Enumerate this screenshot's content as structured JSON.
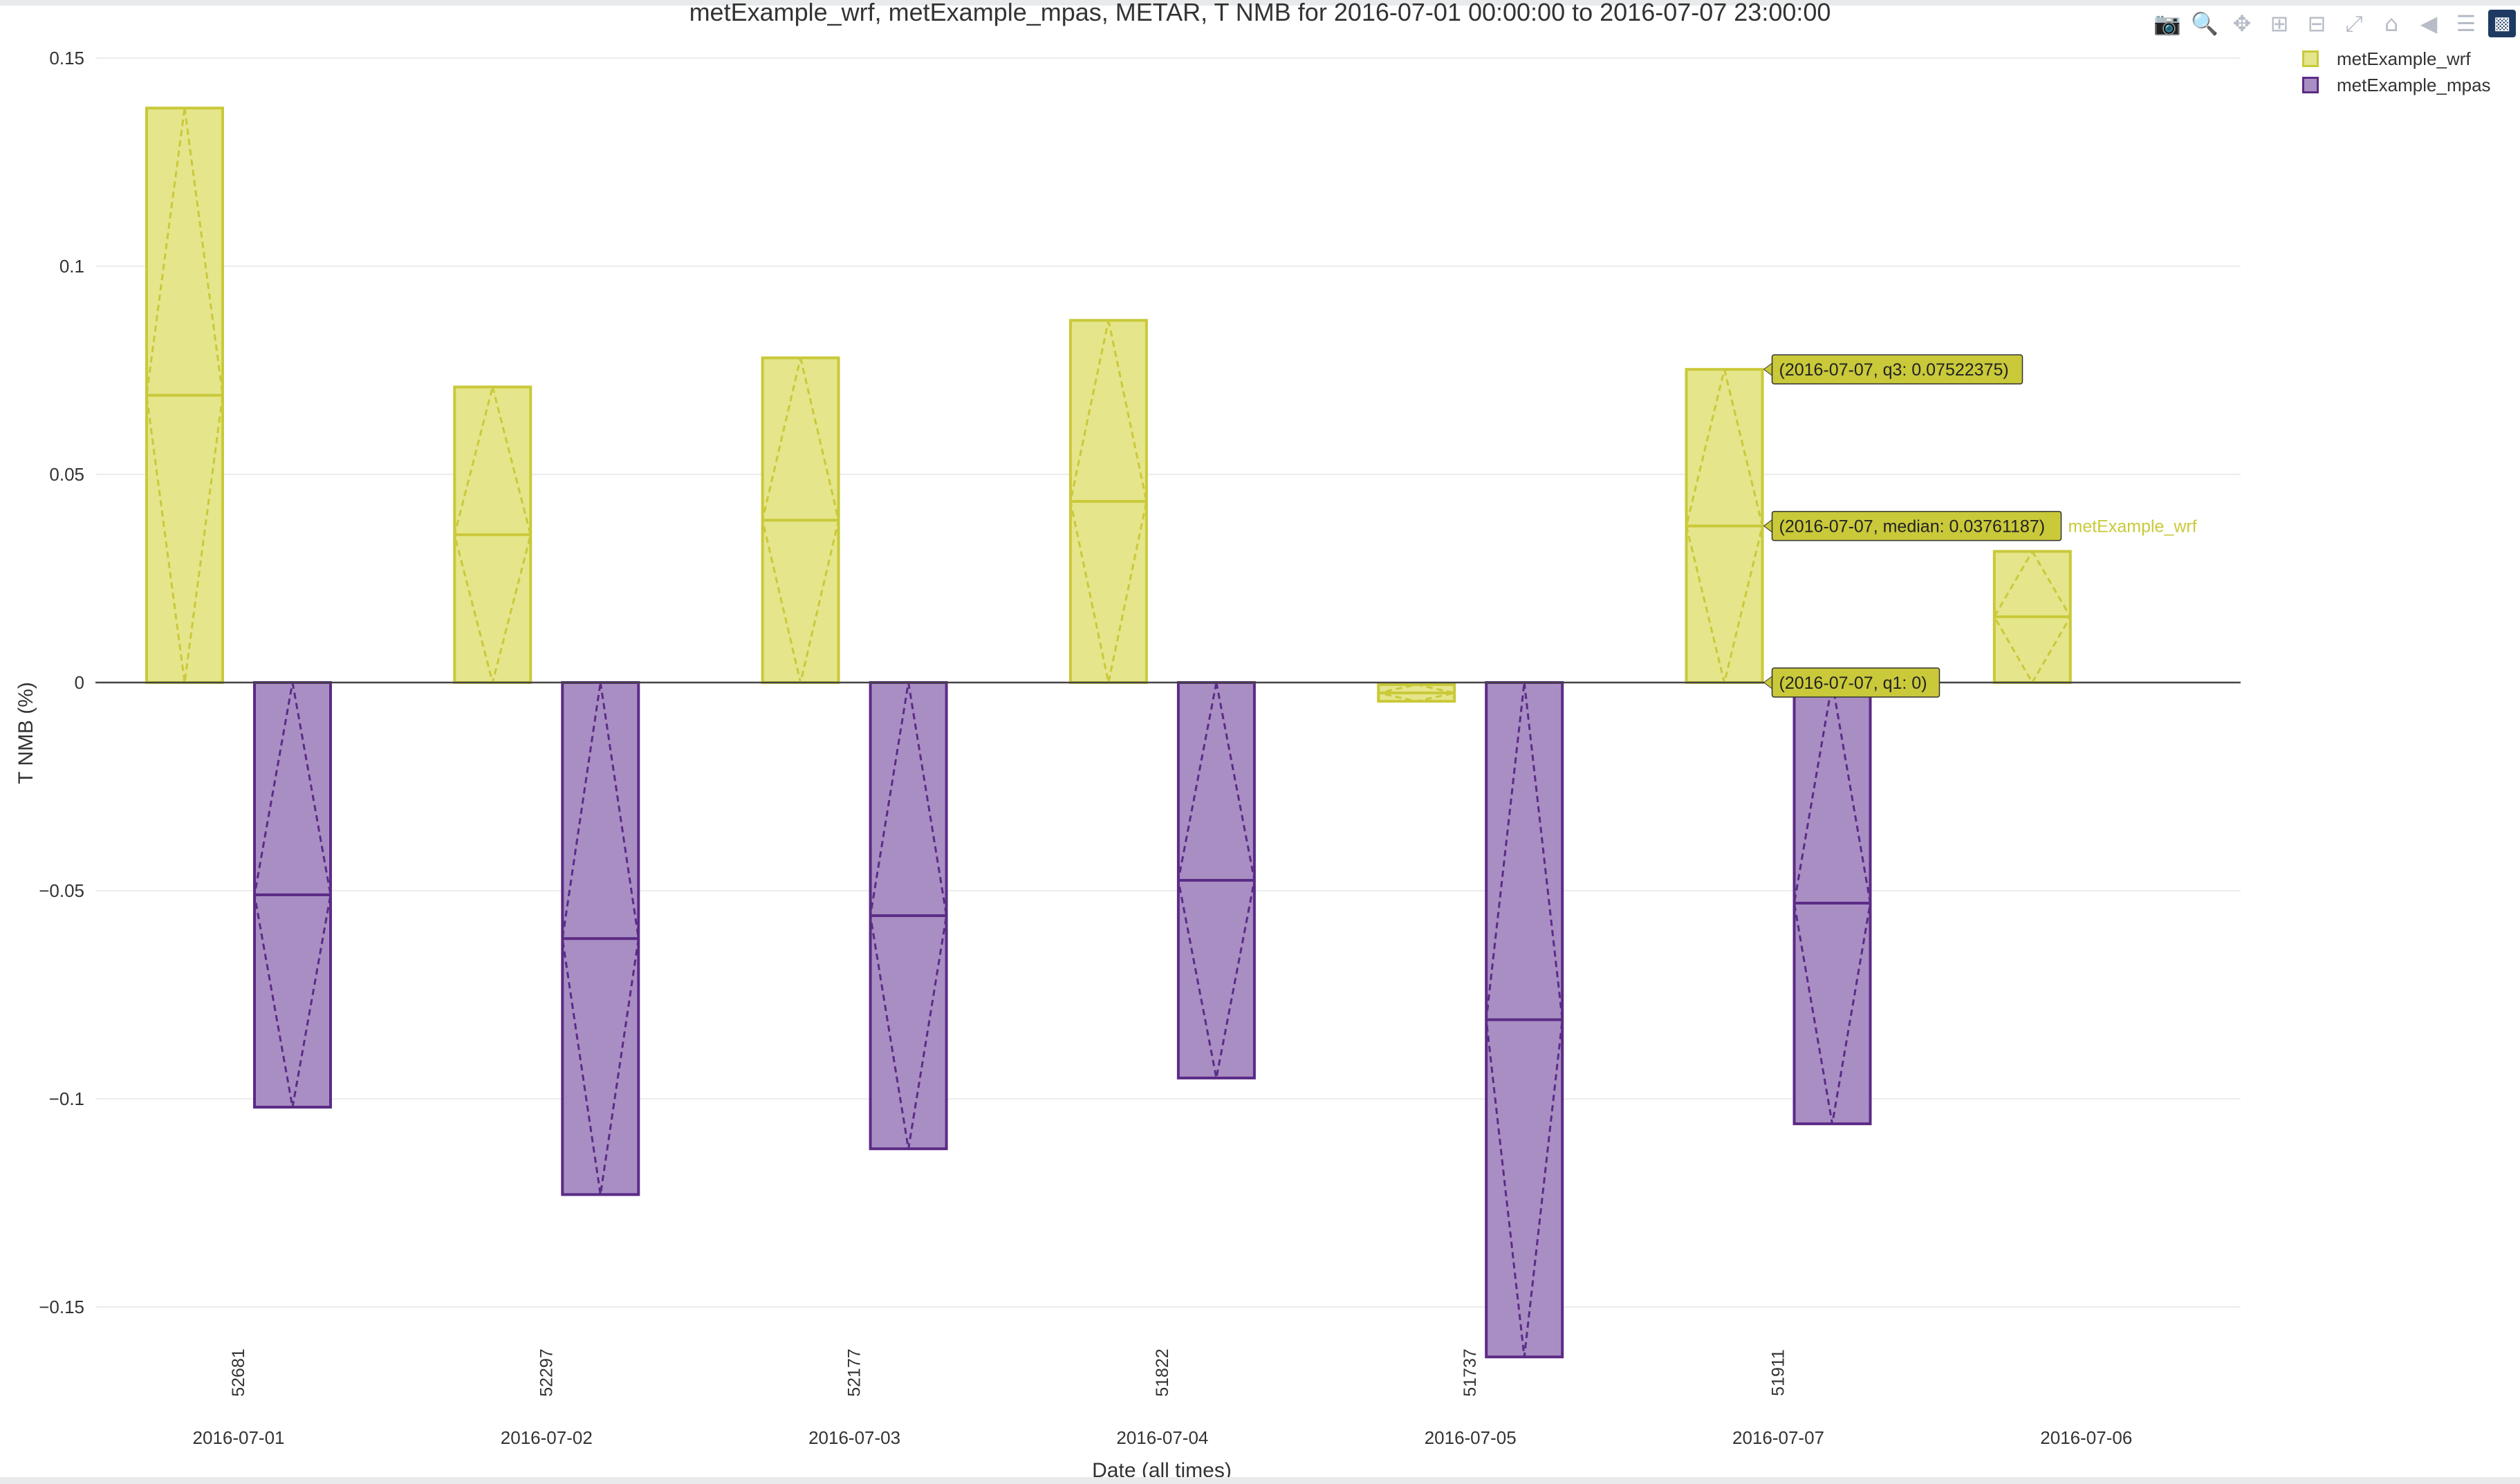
{
  "title": "metExample_wrf, metExample_mpas, METAR, T NMB for 2016-07-01 00:00:00 to 2016-07-07 23:00:00",
  "colors": {
    "wrf_fill": "#e5e58b",
    "wrf_line": "#c9c93a",
    "mpas_fill": "#a98ec3",
    "mpas_line": "#5b2b86",
    "hover_bg": "#c9c93a",
    "grid": "#ececec",
    "zero_line": "#444444"
  },
  "modebar": {
    "icons": [
      "camera-icon",
      "zoom-icon",
      "pan-icon",
      "zoom-in-icon",
      "zoom-out-icon",
      "autoscale-icon",
      "home-icon",
      "spike-lines-icon",
      "compare-hover-icon",
      "plotly-logo-icon"
    ]
  },
  "chart_data": {
    "type": "box",
    "title": "metExample_wrf, metExample_mpas, METAR, T NMB for 2016-07-01 00:00:00 to 2016-07-07 23:00:00",
    "xlabel": "Date (all times)",
    "ylabel": "T NMB (%)",
    "ylim": [
      -0.168,
      0.155
    ],
    "yticks": [
      0.15,
      0.1,
      0.05,
      0,
      -0.05,
      -0.1,
      -0.15
    ],
    "ytick_labels": [
      "0.15",
      "0.1",
      "0.05",
      "0",
      "−0.05",
      "−0.1",
      "−0.15"
    ],
    "grid": true,
    "legend_position": "top-right",
    "categories": [
      "2016-07-01",
      "2016-07-02",
      "2016-07-03",
      "2016-07-04",
      "2016-07-05",
      "2016-07-07",
      "2016-07-06"
    ],
    "counts": [
      "52681",
      "52297",
      "52177",
      "51822",
      "51737",
      "51911",
      ""
    ],
    "series": [
      {
        "name": "metExample_wrf",
        "q1": [
          0,
          0,
          0,
          0,
          -0.0045,
          0,
          0
        ],
        "median": [
          0.069,
          0.0355,
          0.039,
          0.0435,
          -0.0025,
          0.03761187,
          0.0158
        ],
        "q3": [
          0.138,
          0.071,
          0.078,
          0.087,
          -0.0005,
          0.07522375,
          0.0315
        ]
      },
      {
        "name": "metExample_mpas",
        "q1": [
          -0.102,
          -0.123,
          -0.112,
          -0.095,
          -0.162,
          -0.106,
          null
        ],
        "median": [
          -0.051,
          -0.0615,
          -0.056,
          -0.0475,
          -0.081,
          -0.053,
          null
        ],
        "q3": [
          0,
          0,
          0,
          0,
          0,
          0,
          null
        ]
      }
    ],
    "hover_labels": [
      "(2016-07-07, q3: 0.07522375)",
      "(2016-07-07, median: 0.03761187)",
      "(2016-07-07, q1: 0)"
    ],
    "hover_values": [
      0.07522375,
      0.03761187,
      0
    ],
    "hover_trace_label": "metExample_wrf"
  }
}
